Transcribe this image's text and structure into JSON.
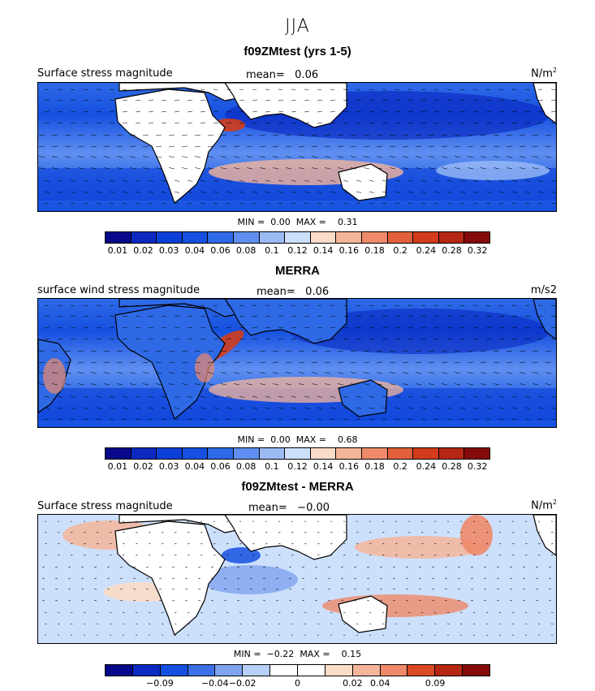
{
  "season": "JJA",
  "colors": {
    "seq": [
      "#08088a",
      "#0a2ac2",
      "#0c3fd8",
      "#1550e0",
      "#2f6ae6",
      "#5f8ff0",
      "#9bbbf5",
      "#cde0fb",
      "#fbdcc8",
      "#f5b59a",
      "#ee8a6a",
      "#e2613d",
      "#d23c1a",
      "#b52712",
      "#870a0a"
    ],
    "diff": [
      "#08088a",
      "#0a2ac2",
      "#1550e0",
      "#3c70e8",
      "#7ea4f0",
      "#b8d0f8",
      "#ffffff",
      "#ffffff",
      "#fbdcc8",
      "#f5b59a",
      "#ee8a6a",
      "#d94a22",
      "#b52712",
      "#870a0a"
    ],
    "land": "#ffffff",
    "coast": "#000000"
  },
  "panels": [
    {
      "title": "f09ZMtest (yrs 1-5)",
      "var_name": "Surface stress magnitude",
      "mean_label": "mean=",
      "mean_value": "0.06",
      "units": "N/m",
      "units_sup": "2",
      "min_label": "MIN =",
      "min_value": "0.00",
      "max_label": "MAX =",
      "max_value": "0.31",
      "colorbar_type": "seq",
      "ticks": [
        "0.01",
        "0.02",
        "0.03",
        "0.04",
        "0.06",
        "0.08",
        "0.1",
        "0.12",
        "0.14",
        "0.16",
        "0.18",
        "0.2",
        "0.24",
        "0.28",
        "0.32"
      ]
    },
    {
      "title": "MERRA",
      "var_name": "surface wind stress magnitude",
      "mean_label": "mean=",
      "mean_value": "0.06",
      "units": "m/s2",
      "units_sup": "",
      "min_label": "MIN =",
      "min_value": "0.00",
      "max_label": "MAX =",
      "max_value": "0.68",
      "colorbar_type": "seq",
      "ticks": [
        "0.01",
        "0.02",
        "0.03",
        "0.04",
        "0.06",
        "0.08",
        "0.1",
        "0.12",
        "0.14",
        "0.16",
        "0.18",
        "0.2",
        "0.24",
        "0.28",
        "0.32"
      ]
    },
    {
      "title": "f09ZMtest - MERRA",
      "var_name": "Surface stress magnitude",
      "mean_label": "mean=",
      "mean_value": "−0.00",
      "units": "N/m",
      "units_sup": "2",
      "min_label": "MIN =",
      "min_value": "−0.22",
      "max_label": "MAX =",
      "max_value": "0.15",
      "colorbar_type": "diff",
      "ticks": [
        "−0.09",
        "−0.04",
        "−0.02",
        "0",
        "0.02",
        "0.04",
        "0.09"
      ]
    }
  ]
}
